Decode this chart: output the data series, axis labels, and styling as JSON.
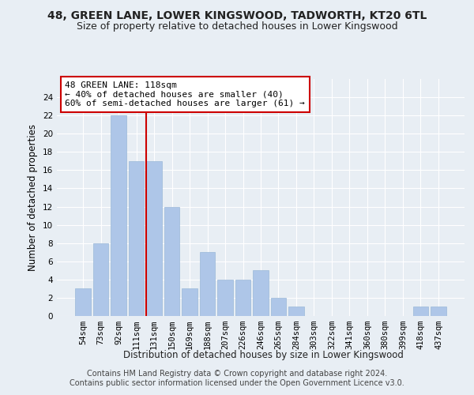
{
  "title": "48, GREEN LANE, LOWER KINGSWOOD, TADWORTH, KT20 6TL",
  "subtitle": "Size of property relative to detached houses in Lower Kingswood",
  "xlabel": "Distribution of detached houses by size in Lower Kingswood",
  "ylabel": "Number of detached properties",
  "footer_line1": "Contains HM Land Registry data © Crown copyright and database right 2024.",
  "footer_line2": "Contains public sector information licensed under the Open Government Licence v3.0.",
  "categories": [
    "54sqm",
    "73sqm",
    "92sqm",
    "111sqm",
    "131sqm",
    "150sqm",
    "169sqm",
    "188sqm",
    "207sqm",
    "226sqm",
    "246sqm",
    "265sqm",
    "284sqm",
    "303sqm",
    "322sqm",
    "341sqm",
    "360sqm",
    "380sqm",
    "399sqm",
    "418sqm",
    "437sqm"
  ],
  "values": [
    3,
    8,
    22,
    17,
    17,
    12,
    3,
    7,
    4,
    4,
    5,
    2,
    1,
    0,
    0,
    0,
    0,
    0,
    0,
    1,
    1
  ],
  "bar_color": "#aec6e8",
  "bar_edge_color": "#9ab8d8",
  "background_color": "#e8eef4",
  "plot_bg_color": "#e8eef4",
  "grid_color": "#ffffff",
  "vline_x": 3.55,
  "vline_color": "#cc0000",
  "annotation_text": "48 GREEN LANE: 118sqm\n← 40% of detached houses are smaller (40)\n60% of semi-detached houses are larger (61) →",
  "annotation_box_color": "#ffffff",
  "annotation_box_edge_color": "#cc0000",
  "ylim": [
    0,
    26
  ],
  "yticks": [
    0,
    2,
    4,
    6,
    8,
    10,
    12,
    14,
    16,
    18,
    20,
    22,
    24
  ],
  "title_fontsize": 10,
  "subtitle_fontsize": 9,
  "xlabel_fontsize": 8.5,
  "ylabel_fontsize": 8.5,
  "tick_fontsize": 7.5,
  "annotation_fontsize": 8,
  "footer_fontsize": 7
}
